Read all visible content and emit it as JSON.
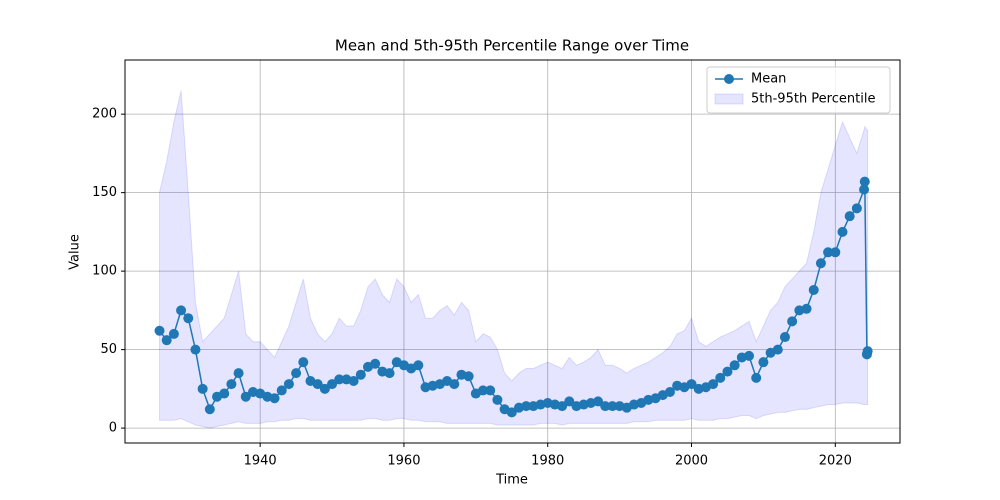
{
  "chart_data": {
    "type": "line",
    "title": "Mean and 5th-95th Percentile Range over Time",
    "xlabel": "Time",
    "ylabel": "Value",
    "x": [
      1926,
      1927,
      1928,
      1929,
      1930,
      1931,
      1932,
      1933,
      1934,
      1935,
      1936,
      1937,
      1938,
      1939,
      1940,
      1941,
      1942,
      1943,
      1944,
      1945,
      1946,
      1947,
      1948,
      1949,
      1950,
      1951,
      1952,
      1953,
      1954,
      1955,
      1956,
      1957,
      1958,
      1959,
      1960,
      1961,
      1962,
      1963,
      1964,
      1965,
      1966,
      1967,
      1968,
      1969,
      1970,
      1971,
      1972,
      1973,
      1974,
      1975,
      1976,
      1977,
      1978,
      1979,
      1980,
      1981,
      1982,
      1983,
      1984,
      1985,
      1986,
      1987,
      1988,
      1989,
      1990,
      1991,
      1992,
      1993,
      1994,
      1995,
      1996,
      1997,
      1998,
      1999,
      2000,
      2001,
      2002,
      2003,
      2004,
      2005,
      2006,
      2007,
      2008,
      2009,
      2010,
      2011,
      2012,
      2013,
      2014,
      2015,
      2016,
      2017,
      2018,
      2019,
      2020,
      2021,
      2022,
      2023,
      2024,
      2024.1,
      2024.4,
      2024.5
    ],
    "series": [
      {
        "name": "Mean",
        "color": "#1f77b4",
        "values": [
          62,
          56,
          60,
          75,
          70,
          50,
          25,
          12,
          20,
          22,
          28,
          35,
          20,
          23,
          22,
          20,
          19,
          24,
          28,
          35,
          42,
          30,
          28,
          25,
          28,
          31,
          31,
          30,
          34,
          39,
          41,
          36,
          35,
          42,
          40,
          38,
          40,
          26,
          27,
          28,
          30,
          28,
          34,
          33,
          22,
          24,
          24,
          18,
          12,
          10,
          13,
          14,
          14,
          15,
          16,
          15,
          14,
          17,
          14,
          15,
          16,
          17,
          14,
          14,
          14,
          13,
          15,
          16,
          18,
          19,
          21,
          23,
          27,
          26,
          28,
          25,
          26,
          28,
          32,
          36,
          40,
          45,
          46,
          32,
          42,
          48,
          50,
          58,
          68,
          75,
          76,
          88,
          105,
          112,
          112,
          125,
          135,
          140,
          152,
          157,
          47,
          49
        ]
      }
    ],
    "band": {
      "name": "5th-95th Percentile",
      "color": "rgba(0,0,255,0.1)",
      "edge": "rgba(0,0,255,0.12)",
      "lower": [
        5,
        5,
        5,
        6,
        4,
        2,
        1,
        0,
        1,
        2,
        3,
        4,
        3,
        3,
        3,
        4,
        4,
        5,
        5,
        6,
        6,
        5,
        5,
        5,
        5,
        5,
        5,
        5,
        5,
        6,
        6,
        5,
        5,
        6,
        6,
        5,
        5,
        4,
        4,
        4,
        3,
        3,
        3,
        3,
        3,
        3,
        3,
        2,
        2,
        2,
        2,
        2,
        2,
        3,
        3,
        3,
        2,
        3,
        3,
        3,
        3,
        3,
        3,
        3,
        3,
        3,
        4,
        4,
        4,
        5,
        5,
        5,
        5,
        5,
        6,
        5,
        5,
        5,
        6,
        6,
        7,
        8,
        8,
        6,
        8,
        9,
        10,
        10,
        11,
        12,
        12,
        13,
        14,
        15,
        15,
        16,
        16,
        16,
        15,
        15,
        15,
        15
      ],
      "upper": [
        150,
        170,
        195,
        215,
        150,
        80,
        55,
        60,
        65,
        70,
        85,
        100,
        60,
        55,
        55,
        50,
        45,
        55,
        65,
        80,
        95,
        70,
        60,
        55,
        60,
        70,
        65,
        65,
        75,
        90,
        95,
        85,
        80,
        95,
        90,
        80,
        85,
        70,
        70,
        75,
        78,
        72,
        80,
        75,
        55,
        60,
        58,
        50,
        35,
        30,
        35,
        38,
        38,
        40,
        42,
        40,
        38,
        45,
        40,
        42,
        45,
        50,
        40,
        40,
        38,
        35,
        38,
        40,
        42,
        45,
        48,
        52,
        60,
        62,
        70,
        55,
        52,
        55,
        58,
        60,
        62,
        65,
        68,
        55,
        65,
        75,
        80,
        90,
        95,
        100,
        105,
        125,
        150,
        165,
        180,
        195,
        185,
        175,
        190,
        192,
        190,
        190
      ]
    },
    "xlim": [
      1921.2,
      2029
    ],
    "ylim": [
      -9.5,
      234.5
    ],
    "xticks": [
      1940,
      1960,
      1980,
      2000,
      2020
    ],
    "yticks": [
      0,
      50,
      100,
      150,
      200
    ],
    "grid": true,
    "legend": "upper right"
  }
}
